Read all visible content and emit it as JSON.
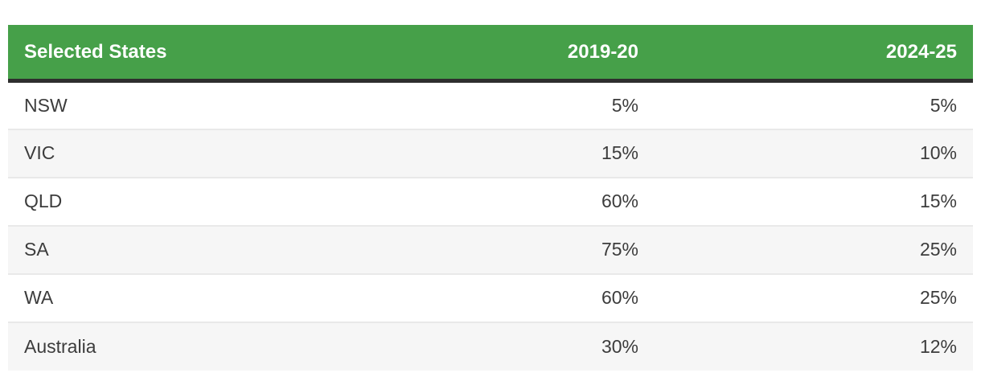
{
  "colors": {
    "header_bg": "#46a049",
    "header_text": "#ffffff",
    "header_bottom_border": "#2e2e2e",
    "row_bg": "#ffffff",
    "row_stripe_bg": "#f6f6f6",
    "row_border": "#e9e9e9",
    "body_text": "#3c3c3c"
  },
  "table": {
    "headers": [
      "Selected States",
      "2019-20",
      "2024-25"
    ],
    "rows": [
      {
        "state": "NSW",
        "y2019": "5%",
        "y2024": "5%"
      },
      {
        "state": "VIC",
        "y2019": "15%",
        "y2024": "10%"
      },
      {
        "state": "QLD",
        "y2019": "60%",
        "y2024": "15%"
      },
      {
        "state": "SA",
        "y2019": "75%",
        "y2024": "25%"
      },
      {
        "state": "WA",
        "y2019": "60%",
        "y2024": "25%"
      },
      {
        "state": "Australia",
        "y2019": "30%",
        "y2024": "12%"
      }
    ]
  },
  "chart_data": {
    "type": "table",
    "title": "Selected States",
    "columns": [
      "Selected States",
      "2019-20",
      "2024-25"
    ],
    "categories": [
      "NSW",
      "VIC",
      "QLD",
      "SA",
      "WA",
      "Australia"
    ],
    "series": [
      {
        "name": "2019-20",
        "values": [
          5,
          15,
          60,
          75,
          60,
          30
        ]
      },
      {
        "name": "2024-25",
        "values": [
          5,
          10,
          15,
          25,
          25,
          12
        ]
      }
    ],
    "value_unit": "%",
    "layout": {
      "header_fill": "#46a049",
      "zebra_striping": true
    }
  }
}
